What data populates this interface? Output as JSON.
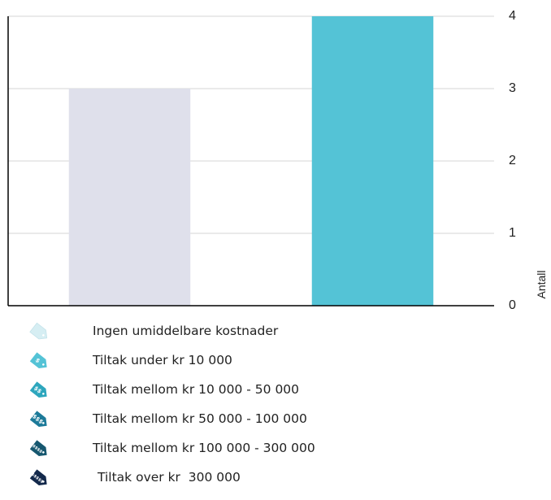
{
  "chart_data": {
    "type": "bar",
    "categories": [
      "Ingen umiddelbare kostnader",
      "Tiltak under kr 10 000"
    ],
    "values": [
      3,
      4
    ],
    "colors": [
      "#dfe0eb",
      "#54c3d6"
    ],
    "ylabel": "Antall",
    "yticks": [
      "0",
      "1",
      "2",
      "3",
      "4"
    ],
    "ylim": [
      0,
      4
    ],
    "y_axis_side": "right",
    "grid": true
  },
  "legend": {
    "items": [
      {
        "label": "Ingen umiddelbare kostnader",
        "color": "#d6eef3",
        "symbol": "",
        "icon": "price-tag-icon"
      },
      {
        "label": "Tiltak under kr 10 000",
        "color": "#54c3d6",
        "symbol": "$",
        "icon": "price-tag-icon"
      },
      {
        "label": "Tiltak mellom kr 10 000 - 50 000",
        "color": "#2da6bd",
        "symbol": "$$",
        "icon": "price-tag-icon"
      },
      {
        "label": "Tiltak mellom kr 50 000 - 100 000",
        "color": "#1c7a99",
        "symbol": "$$$",
        "icon": "price-tag-icon"
      },
      {
        "label": "Tiltak mellom kr 100 000 - 300 000",
        "color": "#16576f",
        "symbol": "$$$$",
        "icon": "price-tag-icon"
      },
      {
        "label": "Tiltak over kr  300 000",
        "color": "#13294b",
        "symbol": "$$$$$",
        "icon": "price-tag-icon"
      }
    ]
  }
}
